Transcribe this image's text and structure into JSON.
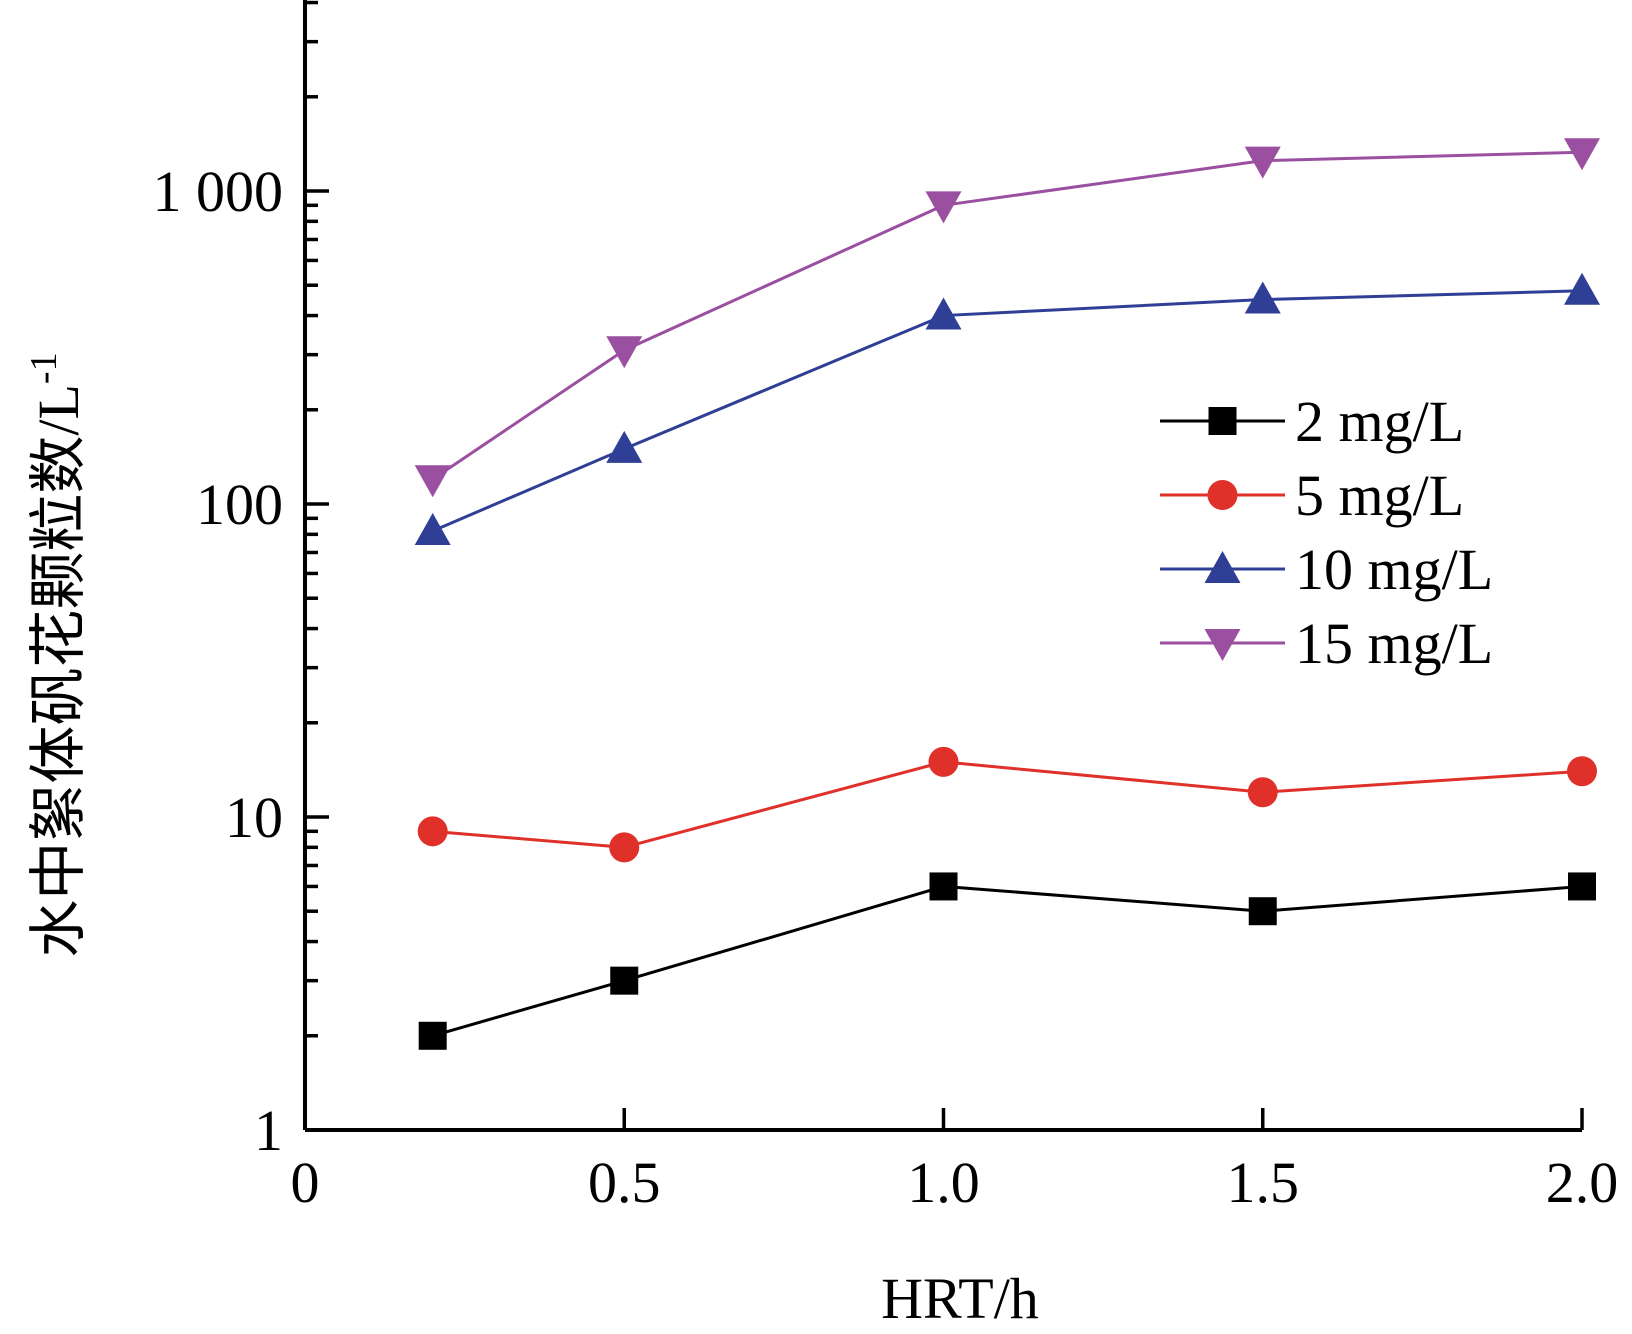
{
  "chart_data": {
    "type": "line",
    "xlabel": "HRT/h",
    "ylabel": "水中絮体矾花颗粒数/L",
    "ylabel_superscript": "-1",
    "xlim": [
      0,
      2.0
    ],
    "ylim": [
      1,
      6000
    ],
    "yscale": "log",
    "x_ticks": [
      0,
      0.5,
      1.0,
      1.5,
      2.0
    ],
    "x_tick_labels": [
      "0",
      "0.5",
      "1.0",
      "1.5",
      "2.0"
    ],
    "y_ticks": [
      1,
      10,
      100,
      1000
    ],
    "y_tick_labels": [
      "1",
      "10",
      "100",
      "1 000"
    ],
    "legend_position": "right-upper",
    "grid": false,
    "x": [
      0.2,
      0.5,
      1.0,
      1.5,
      2.0
    ],
    "series": [
      {
        "name": "2 mg/L",
        "color": "#000000",
        "marker": "square",
        "values": [
          2,
          3,
          6,
          5,
          6
        ]
      },
      {
        "name": "5 mg/L",
        "color": "#e0302a",
        "marker": "circle",
        "values": [
          9,
          8,
          15,
          12,
          14
        ]
      },
      {
        "name": "10 mg/L",
        "color": "#2e3f95",
        "marker": "triangle-up",
        "values": [
          82,
          150,
          400,
          450,
          480
        ]
      },
      {
        "name": "15 mg/L",
        "color": "#9b4fa0",
        "marker": "triangle-down",
        "values": [
          120,
          310,
          900,
          1250,
          1330
        ]
      }
    ]
  }
}
